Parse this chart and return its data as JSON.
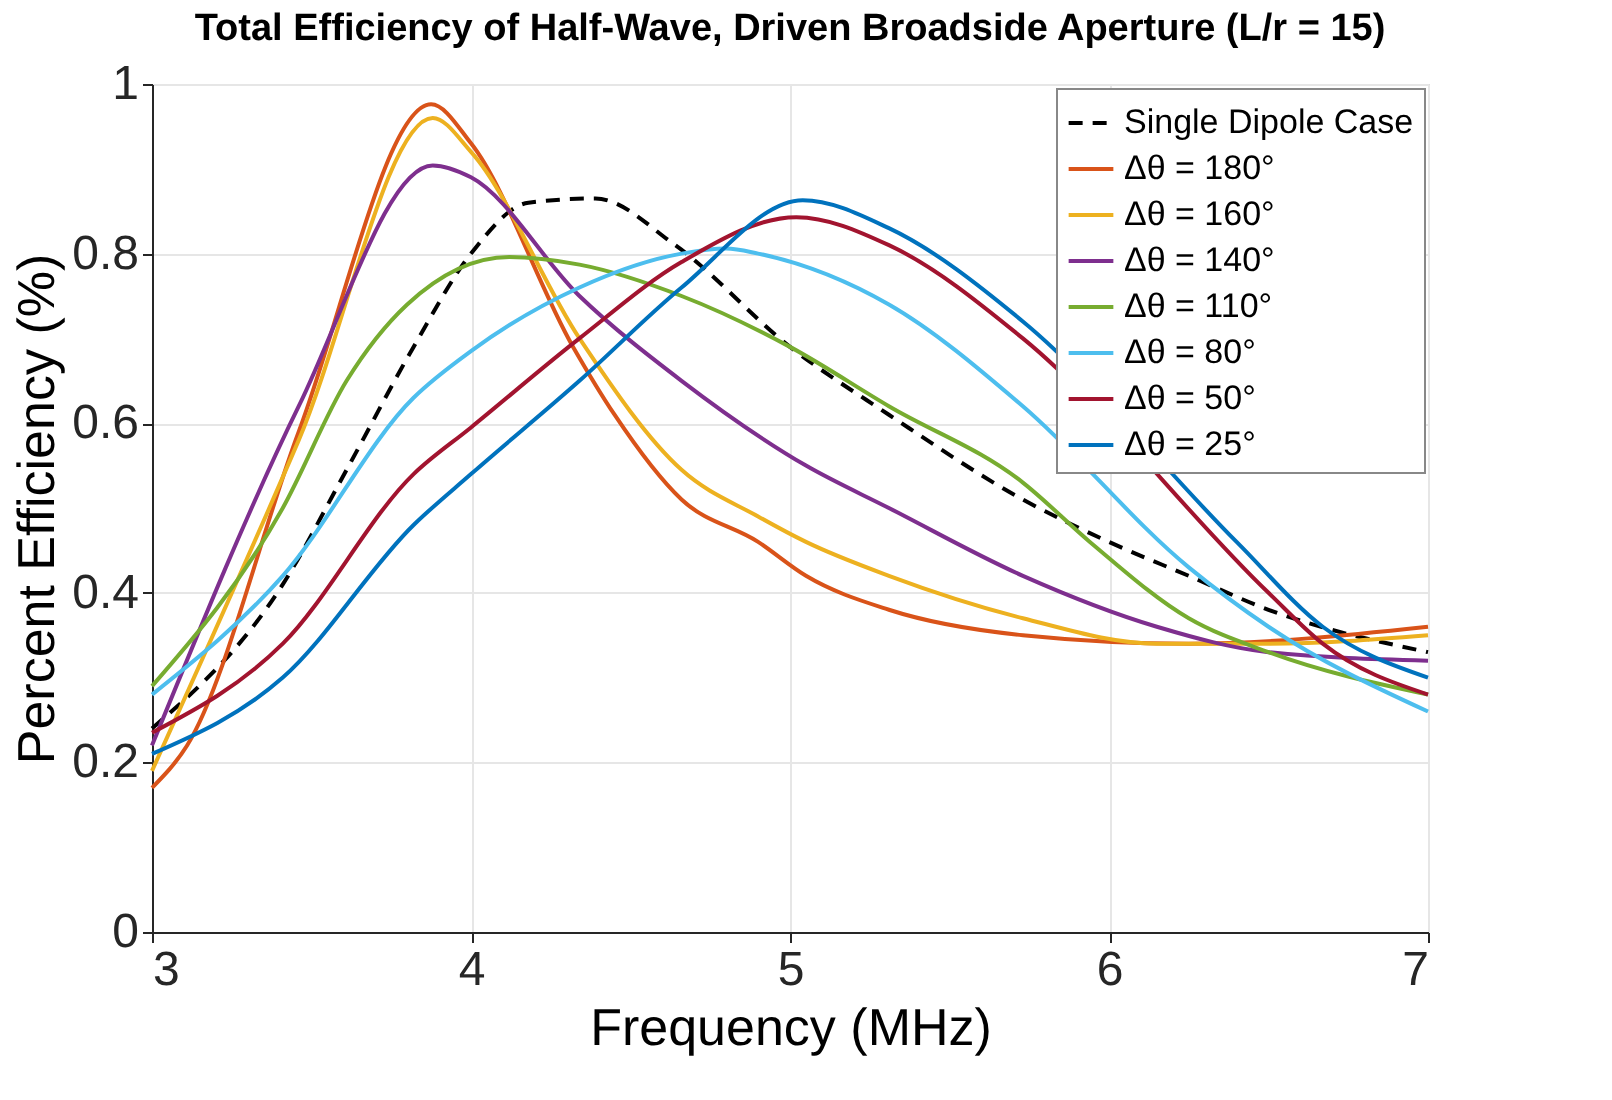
{
  "chart_data": {
    "type": "line",
    "title": "Total Efficiency of Half-Wave, Driven Broadside Aperture (L/r = 15)",
    "xlabel": "Frequency (MHz)",
    "ylabel": "Percent Efficiency (%)",
    "xlim": [
      3,
      7
    ],
    "xticks": [
      3,
      4,
      5,
      6,
      7
    ],
    "ylim": [
      0,
      1
    ],
    "yticks": [
      0,
      0.2,
      0.4,
      0.6,
      0.8,
      1
    ],
    "grid": true,
    "legend": "top right",
    "marker": "none",
    "series": [
      {
        "name": "Single Dipole Case",
        "color": "#000000",
        "line_style": "dashed",
        "x": [
          3,
          3.41,
          3.61,
          3.82,
          4,
          4.18,
          4.39,
          4.64,
          5,
          5.31,
          5.73,
          6,
          6.25,
          6.5,
          7
        ],
        "values": [
          0.24,
          0.41,
          0.545,
          0.69,
          0.8,
          0.86,
          0.865,
          0.81,
          0.69,
          0.61,
          0.51,
          0.46,
          0.42,
          0.38,
          0.33
        ]
      },
      {
        "name": "Δθ = 180°",
        "color": "#d95319",
        "line_style": "solid",
        "x": [
          3,
          3.11,
          3.46,
          3.875,
          4,
          4.32,
          4.45,
          4.66,
          4.9,
          5.05,
          5.31,
          5.73,
          6.25,
          7
        ],
        "values": [
          0.17,
          0.22,
          0.59,
          0.976,
          0.93,
          0.69,
          0.61,
          0.51,
          0.46,
          0.42,
          0.38,
          0.35,
          0.34,
          0.36
        ]
      },
      {
        "name": "Δθ = 160°",
        "color": "#edb120",
        "line_style": "solid",
        "x": [
          3,
          3.46,
          3.88,
          4,
          4.34,
          4.66,
          4.9,
          5.05,
          5.31,
          5.73,
          6.15,
          6.5,
          7
        ],
        "values": [
          0.19,
          0.58,
          0.96,
          0.92,
          0.7,
          0.545,
          0.49,
          0.46,
          0.42,
          0.37,
          0.34,
          0.34,
          0.35
        ]
      },
      {
        "name": "Δθ = 140°",
        "color": "#7e2f8e",
        "line_style": "solid",
        "x": [
          3,
          3.46,
          3.88,
          4,
          4.34,
          4.66,
          5.05,
          5.31,
          5.73,
          6.15,
          6.5,
          7
        ],
        "values": [
          0.22,
          0.62,
          0.904,
          0.89,
          0.75,
          0.65,
          0.55,
          0.5,
          0.42,
          0.36,
          0.33,
          0.32
        ]
      },
      {
        "name": "Δθ = 110°",
        "color": "#77ac30",
        "line_style": "solid",
        "x": [
          3,
          3.41,
          3.61,
          3.8,
          4.12,
          4.34,
          4.66,
          5,
          5.31,
          5.73,
          5.94,
          6.25,
          6.5,
          7
        ],
        "values": [
          0.29,
          0.5,
          0.65,
          0.74,
          0.796,
          0.787,
          0.75,
          0.69,
          0.62,
          0.53,
          0.46,
          0.37,
          0.33,
          0.28
        ]
      },
      {
        "name": "Δθ = 80°",
        "color": "#4dbeee",
        "line_style": "solid",
        "x": [
          3,
          3.41,
          3.82,
          4,
          4.34,
          4.66,
          4.8,
          4.9,
          5.31,
          5.73,
          6.25,
          6.5,
          7
        ],
        "values": [
          0.28,
          0.42,
          0.63,
          0.685,
          0.76,
          0.8,
          0.806,
          0.8,
          0.74,
          0.62,
          0.43,
          0.36,
          0.26
        ]
      },
      {
        "name": "Δθ = 50°",
        "color": "#a2142f",
        "line_style": "solid",
        "x": [
          3,
          3.41,
          3.82,
          4,
          4.34,
          4.66,
          5.02,
          5.31,
          5.73,
          6.5,
          6.67,
          7
        ],
        "values": [
          0.235,
          0.34,
          0.54,
          0.595,
          0.7,
          0.79,
          0.843,
          0.81,
          0.7,
          0.4,
          0.34,
          0.28
        ]
      },
      {
        "name": "Δθ = 25°",
        "color": "#0072bd",
        "line_style": "solid",
        "x": [
          3,
          3.41,
          3.82,
          4,
          4.34,
          4.66,
          5.04,
          5.31,
          5.73,
          6.4,
          6.67,
          7
        ],
        "values": [
          0.21,
          0.3,
          0.48,
          0.54,
          0.65,
          0.76,
          0.863,
          0.83,
          0.72,
          0.46,
          0.36,
          0.3
        ]
      }
    ]
  }
}
